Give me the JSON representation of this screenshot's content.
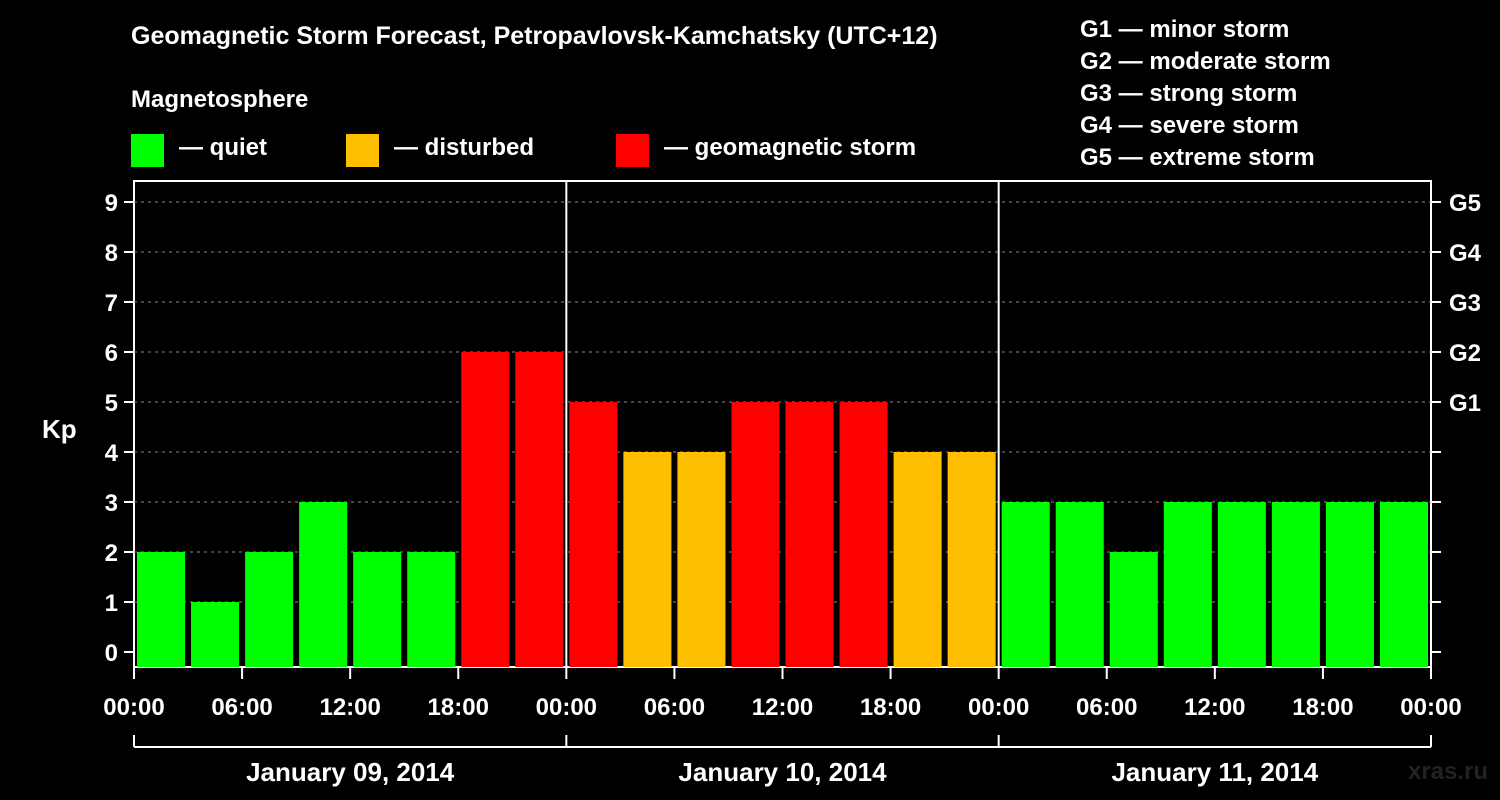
{
  "title": "Geomagnetic Storm Forecast, Petropavlovsk-Kamchatsky (UTC+12)",
  "legend": {
    "heading": "Magnetosphere",
    "items": [
      {
        "label": "— quiet",
        "color": "#00ff00"
      },
      {
        "label": "— disturbed",
        "color": "#ffbf00"
      },
      {
        "label": "— geomagnetic storm",
        "color": "#ff0000"
      }
    ]
  },
  "storm_scale": [
    "G1 — minor storm",
    "G2 — moderate storm",
    "G3 — strong storm",
    "G4 — severe storm",
    "G5 — extreme storm"
  ],
  "watermark": "xras.ru",
  "chart_data": {
    "type": "bar",
    "ylabel": "Kp",
    "ylim": [
      0,
      9
    ],
    "y_ticks": [
      0,
      1,
      2,
      3,
      4,
      5,
      6,
      7,
      8,
      9
    ],
    "right_ticks": [
      {
        "value": 5,
        "label": "G1"
      },
      {
        "value": 6,
        "label": "G2"
      },
      {
        "value": 7,
        "label": "G3"
      },
      {
        "value": 8,
        "label": "G4"
      },
      {
        "value": 9,
        "label": "G5"
      }
    ],
    "grid": "dashed horizontal",
    "x_tick_labels": [
      "00:00",
      "06:00",
      "12:00",
      "18:00",
      "00:00",
      "06:00",
      "12:00",
      "18:00",
      "00:00",
      "06:00",
      "12:00",
      "18:00",
      "00:00"
    ],
    "days": [
      "January 09, 2014",
      "January 10, 2014",
      "January 11, 2014"
    ],
    "interval_hours": 3,
    "values": [
      2,
      1,
      2,
      3,
      2,
      2,
      6,
      6,
      5,
      4,
      4,
      5,
      5,
      5,
      4,
      4,
      3,
      3,
      2,
      3,
      3,
      3,
      3,
      3
    ],
    "colors": {
      "quiet": "#00ff00",
      "disturbed": "#ffbf00",
      "storm": "#ff0000"
    },
    "color_rule": "Kp<=3 quiet, Kp=4 disturbed, Kp>=5 storm"
  }
}
